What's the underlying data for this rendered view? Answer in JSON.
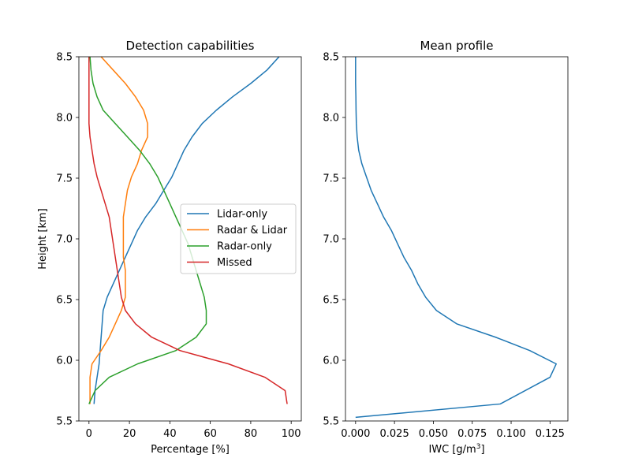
{
  "chart_data": [
    {
      "type": "line",
      "title": "Detection capabilities",
      "xlabel": "Percentage [%]",
      "ylabel": "Height [km]",
      "xlim": [
        -5,
        105
      ],
      "ylim": [
        5.5,
        8.5
      ],
      "xticks": [
        0,
        20,
        40,
        60,
        80,
        100
      ],
      "yticks": [
        5.5,
        6.0,
        6.5,
        7.0,
        7.5,
        8.0,
        8.5
      ],
      "xtick_labels": [
        "0",
        "20",
        "40",
        "60",
        "80",
        "100"
      ],
      "ytick_labels": [
        "5.5",
        "6.0",
        "6.5",
        "7.0",
        "7.5",
        "8.0",
        "8.5"
      ],
      "grid": false,
      "legend": "center-right",
      "series": [
        {
          "name": "Lidar-only",
          "color": "#1f77b4",
          "points": [
            [
              2.5,
              5.64
            ],
            [
              3,
              5.75
            ],
            [
              4,
              5.86
            ],
            [
              5,
              5.97
            ],
            [
              5.5,
              6.08
            ],
            [
              6,
              6.19
            ],
            [
              6.5,
              6.3
            ],
            [
              7,
              6.41
            ],
            [
              9,
              6.52
            ],
            [
              12,
              6.63
            ],
            [
              15,
              6.74
            ],
            [
              18,
              6.85
            ],
            [
              21,
              6.96
            ],
            [
              24,
              7.07
            ],
            [
              28,
              7.18
            ],
            [
              33,
              7.29
            ],
            [
              37,
              7.4
            ],
            [
              41,
              7.51
            ],
            [
              44,
              7.62
            ],
            [
              47,
              7.73
            ],
            [
              51,
              7.84
            ],
            [
              56,
              7.95
            ],
            [
              63,
              8.06
            ],
            [
              71,
              8.17
            ],
            [
              80,
              8.28
            ],
            [
              88,
              8.39
            ],
            [
              94,
              8.5
            ]
          ]
        },
        {
          "name": "Radar & Lidar",
          "color": "#ff7f0e",
          "points": [
            [
              0.5,
              5.64
            ],
            [
              0.5,
              5.75
            ],
            [
              0.5,
              5.86
            ],
            [
              1.5,
              5.97
            ],
            [
              6,
              6.08
            ],
            [
              10,
              6.19
            ],
            [
              13,
              6.3
            ],
            [
              16,
              6.41
            ],
            [
              18,
              6.52
            ],
            [
              18,
              6.63
            ],
            [
              18,
              6.74
            ],
            [
              17,
              6.85
            ],
            [
              17,
              6.96
            ],
            [
              17,
              7.07
            ],
            [
              17,
              7.18
            ],
            [
              18,
              7.29
            ],
            [
              19,
              7.4
            ],
            [
              21,
              7.51
            ],
            [
              24,
              7.62
            ],
            [
              26,
              7.73
            ],
            [
              29,
              7.84
            ],
            [
              29,
              7.95
            ],
            [
              27,
              8.06
            ],
            [
              23,
              8.17
            ],
            [
              18,
              8.28
            ],
            [
              12,
              8.39
            ],
            [
              6,
              8.5
            ]
          ]
        },
        {
          "name": "Radar-only",
          "color": "#2ca02c",
          "points": [
            [
              0,
              5.64
            ],
            [
              3,
              5.75
            ],
            [
              10,
              5.86
            ],
            [
              24,
              5.97
            ],
            [
              43,
              6.08
            ],
            [
              53,
              6.19
            ],
            [
              58,
              6.3
            ],
            [
              58,
              6.41
            ],
            [
              57,
              6.52
            ],
            [
              55,
              6.63
            ],
            [
              53,
              6.74
            ],
            [
              51,
              6.85
            ],
            [
              49,
              6.96
            ],
            [
              46,
              7.07
            ],
            [
              43,
              7.18
            ],
            [
              40,
              7.29
            ],
            [
              37,
              7.4
            ],
            [
              34,
              7.51
            ],
            [
              30,
              7.62
            ],
            [
              25,
              7.73
            ],
            [
              19,
              7.84
            ],
            [
              13,
              7.95
            ],
            [
              7,
              8.06
            ],
            [
              4,
              8.17
            ],
            [
              2,
              8.28
            ],
            [
              1,
              8.39
            ],
            [
              0.5,
              8.5
            ]
          ]
        },
        {
          "name": "Missed",
          "color": "#d62728",
          "points": [
            [
              98,
              5.64
            ],
            [
              97,
              5.75
            ],
            [
              87,
              5.86
            ],
            [
              69,
              5.97
            ],
            [
              45,
              6.08
            ],
            [
              31,
              6.19
            ],
            [
              23,
              6.3
            ],
            [
              18,
              6.41
            ],
            [
              16,
              6.52
            ],
            [
              15,
              6.63
            ],
            [
              14,
              6.74
            ],
            [
              13,
              6.85
            ],
            [
              12,
              6.96
            ],
            [
              11,
              7.07
            ],
            [
              10,
              7.18
            ],
            [
              8,
              7.29
            ],
            [
              6,
              7.4
            ],
            [
              4,
              7.51
            ],
            [
              2.5,
              7.62
            ],
            [
              1.5,
              7.73
            ],
            [
              0.5,
              7.84
            ],
            [
              0,
              7.95
            ],
            [
              0,
              8.06
            ],
            [
              0,
              8.17
            ],
            [
              0,
              8.28
            ],
            [
              0,
              8.39
            ],
            [
              0,
              8.5
            ]
          ]
        }
      ]
    },
    {
      "type": "line",
      "title": "Mean profile",
      "xlabel": "IWC [g/m",
      "xlabel_sup": "3",
      "xlabel_end": "]",
      "ylabel": "",
      "xlim": [
        -0.0065,
        0.1365
      ],
      "ylim": [
        5.5,
        8.5
      ],
      "xticks": [
        0,
        0.025,
        0.05,
        0.075,
        0.1,
        0.125
      ],
      "yticks": [
        5.5,
        6.0,
        6.5,
        7.0,
        7.5,
        8.0,
        8.5
      ],
      "xtick_labels": [
        "0.000",
        "0.025",
        "0.050",
        "0.075",
        "0.100",
        "0.125"
      ],
      "ytick_labels": [
        "5.5",
        "6.0",
        "6.5",
        "7.0",
        "7.5",
        "8.0",
        "8.5"
      ],
      "grid": false,
      "series": [
        {
          "name": "",
          "color": "#1f77b4",
          "points": [
            [
              0,
              5.53
            ],
            [
              0.093,
              5.64
            ],
            [
              0.125,
              5.86
            ],
            [
              0.129,
              5.97
            ],
            [
              0.112,
              6.08
            ],
            [
              0.09,
              6.19
            ],
            [
              0.065,
              6.3
            ],
            [
              0.052,
              6.41
            ],
            [
              0.045,
              6.52
            ],
            [
              0.04,
              6.63
            ],
            [
              0.036,
              6.74
            ],
            [
              0.031,
              6.85
            ],
            [
              0.027,
              6.96
            ],
            [
              0.023,
              7.07
            ],
            [
              0.018,
              7.18
            ],
            [
              0.014,
              7.29
            ],
            [
              0.01,
              7.4
            ],
            [
              0.007,
              7.51
            ],
            [
              0.004,
              7.62
            ],
            [
              0.002,
              7.73
            ],
            [
              0.001,
              7.84
            ],
            [
              0.0005,
              7.95
            ],
            [
              0.0003,
              8.06
            ],
            [
              0.0002,
              8.17
            ],
            [
              0,
              8.28
            ],
            [
              0,
              8.39
            ],
            [
              0,
              8.5
            ]
          ]
        }
      ]
    }
  ]
}
